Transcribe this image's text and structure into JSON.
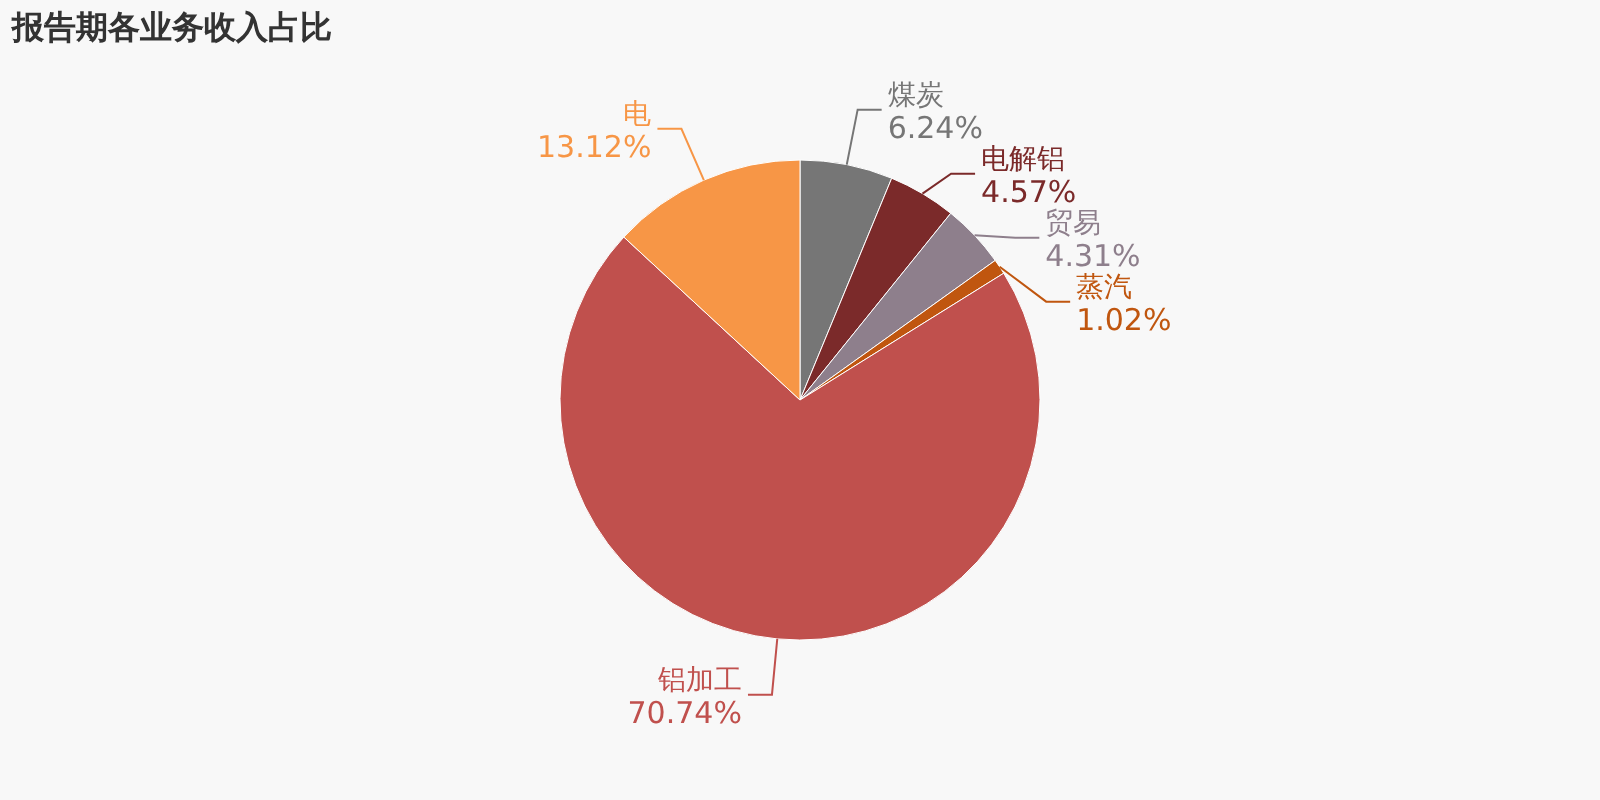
{
  "chart_data": {
    "type": "pie",
    "title": "报告期各业务收入占比",
    "categories": [
      "煤炭",
      "电解铝",
      "贸易",
      "蒸汽",
      "铝加工",
      "电"
    ],
    "values": [
      6.24,
      4.57,
      4.31,
      1.02,
      70.74,
      13.12
    ],
    "colors": [
      "#767676",
      "#7b2a2a",
      "#8e7f8c",
      "#c0560f",
      "#c0504d",
      "#f79646"
    ],
    "value_labels": [
      "6.24%",
      "4.57%",
      "4.31%",
      "1.02%",
      "70.74%",
      "13.12%"
    ]
  }
}
